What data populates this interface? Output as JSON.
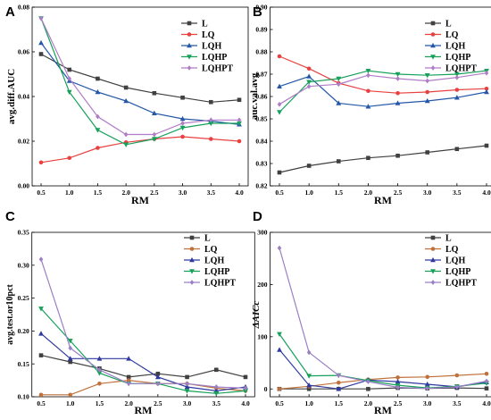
{
  "figure": {
    "panels": [
      "A",
      "B",
      "C",
      "D"
    ]
  },
  "chart_data": [
    {
      "panel": "A",
      "type": "line",
      "xlabel": "RM",
      "ylabel": "avg.diff.AUC",
      "x": [
        0.5,
        1.0,
        1.5,
        2.0,
        2.5,
        3.0,
        3.5,
        4.0
      ],
      "x_tick_labels": [
        "0.5",
        "1.0",
        "1.5",
        "2.0",
        "2.5",
        "3.0",
        "3.5",
        "4.0"
      ],
      "xlim": [
        0.5,
        4.0
      ],
      "ylim": [
        0.0,
        0.08
      ],
      "y_ticks": [
        0.0,
        0.02,
        0.04,
        0.06,
        0.08
      ],
      "y_tick_labels": [
        "0.00",
        "0.02",
        "0.04",
        "0.06",
        "0.08"
      ],
      "legend_position": "top-right",
      "series": [
        {
          "name": "L",
          "color": "#404040",
          "marker": "square",
          "values": [
            0.059,
            0.052,
            0.048,
            0.044,
            0.0415,
            0.0395,
            0.0375,
            0.0385
          ]
        },
        {
          "name": "LQ",
          "color": "#e8413f",
          "marker": "circle",
          "values": [
            0.0105,
            0.0125,
            0.017,
            0.0195,
            0.021,
            0.022,
            0.021,
            0.02
          ]
        },
        {
          "name": "LQH",
          "color": "#2457a8",
          "marker": "triangle-up",
          "values": [
            0.064,
            0.047,
            0.042,
            0.038,
            0.0325,
            0.03,
            0.029,
            0.0275
          ]
        },
        {
          "name": "LQHP",
          "color": "#16a05a",
          "marker": "triangle-down",
          "values": [
            0.075,
            0.042,
            0.025,
            0.0185,
            0.021,
            0.026,
            0.028,
            0.028
          ]
        },
        {
          "name": "LQHPT",
          "color": "#b07cc8",
          "marker": "diamond",
          "values": [
            0.075,
            0.048,
            0.031,
            0.023,
            0.023,
            0.028,
            0.0295,
            0.0295
          ]
        }
      ]
    },
    {
      "panel": "B",
      "type": "line",
      "xlabel": "RM",
      "ylabel": "auc.val.avg",
      "x": [
        0.5,
        1.0,
        1.5,
        2.0,
        2.5,
        3.0,
        3.5,
        4.0
      ],
      "x_tick_labels": [
        "0.5",
        "1.0",
        "1.5",
        "2.0",
        "2.5",
        "3.0",
        "3.5",
        "4.0"
      ],
      "xlim": [
        0.5,
        4.0
      ],
      "ylim": [
        0.82,
        0.9
      ],
      "y_ticks": [
        0.82,
        0.83,
        0.84,
        0.85,
        0.86,
        0.87,
        0.88,
        0.89,
        0.9
      ],
      "y_tick_labels": [
        "0.82",
        "0.83",
        "0.84",
        "0.85",
        "0.86",
        "0.87",
        "0.88",
        "0.89",
        "0.90"
      ],
      "legend_position": "top-right",
      "series": [
        {
          "name": "L",
          "color": "#404040",
          "marker": "square",
          "values": [
            0.826,
            0.829,
            0.831,
            0.8325,
            0.8335,
            0.835,
            0.8365,
            0.838
          ]
        },
        {
          "name": "LQ",
          "color": "#e8413f",
          "marker": "circle",
          "values": [
            0.878,
            0.8725,
            0.866,
            0.8625,
            0.8615,
            0.862,
            0.863,
            0.8635
          ]
        },
        {
          "name": "LQH",
          "color": "#2457a8",
          "marker": "triangle-up",
          "values": [
            0.8645,
            0.869,
            0.857,
            0.8555,
            0.857,
            0.858,
            0.8595,
            0.862
          ]
        },
        {
          "name": "LQHP",
          "color": "#16a05a",
          "marker": "triangle-down",
          "values": [
            0.853,
            0.8665,
            0.868,
            0.8715,
            0.87,
            0.8695,
            0.87,
            0.8715
          ]
        },
        {
          "name": "LQHPT",
          "color": "#b07cc8",
          "marker": "diamond",
          "values": [
            0.8565,
            0.8645,
            0.8655,
            0.8695,
            0.868,
            0.867,
            0.8685,
            0.8705
          ]
        }
      ]
    },
    {
      "panel": "C",
      "type": "line",
      "xlabel": "RM",
      "ylabel": "avg.test.or10pct",
      "x": [
        0.5,
        1.0,
        1.5,
        2.0,
        2.5,
        3.0,
        3.5,
        4.0
      ],
      "x_tick_labels": [
        "0.5",
        "1.0",
        "1.5",
        "2.0",
        "2.5",
        "3.0",
        "3.5",
        "4.0"
      ],
      "xlim": [
        0.5,
        4.0
      ],
      "ylim": [
        0.1,
        0.35
      ],
      "y_ticks": [
        0.1,
        0.15,
        0.2,
        0.25,
        0.3,
        0.35
      ],
      "y_tick_labels": [
        "0.10",
        "0.15",
        "0.20",
        "0.25",
        "0.30",
        "0.35"
      ],
      "legend_position": "top-right",
      "series": [
        {
          "name": "L",
          "color": "#404040",
          "marker": "square",
          "values": [
            0.163,
            0.153,
            0.143,
            0.13,
            0.135,
            0.13,
            0.141,
            0.13
          ]
        },
        {
          "name": "LQ",
          "color": "#c0703a",
          "marker": "circle",
          "values": [
            0.103,
            0.103,
            0.12,
            0.125,
            0.12,
            0.12,
            0.113,
            0.109
          ]
        },
        {
          "name": "LQH",
          "color": "#2f3aa0",
          "marker": "triangle-up",
          "values": [
            0.196,
            0.158,
            0.158,
            0.158,
            0.13,
            0.115,
            0.109,
            0.115
          ]
        },
        {
          "name": "LQHP",
          "color": "#16a05a",
          "marker": "triangle-down",
          "values": [
            0.234,
            0.185,
            0.136,
            0.12,
            0.12,
            0.109,
            0.105,
            0.109
          ]
        },
        {
          "name": "LQHPT",
          "color": "#9b7fc6",
          "marker": "diamond",
          "values": [
            0.309,
            0.174,
            0.141,
            0.12,
            0.12,
            0.12,
            0.115,
            0.113
          ]
        }
      ]
    },
    {
      "panel": "D",
      "type": "line",
      "xlabel": "RM",
      "ylabel": "ΔAICc",
      "x": [
        0.5,
        1.0,
        1.5,
        2.0,
        2.5,
        3.0,
        3.5,
        4.0
      ],
      "x_tick_labels": [
        "0.5",
        "1.0",
        "1.5",
        "2.0",
        "2.5",
        "3.0",
        "3.5",
        "4.0"
      ],
      "xlim": [
        0.5,
        4.0
      ],
      "ylim": [
        -15,
        300
      ],
      "y_ticks": [
        0,
        100,
        200,
        300
      ],
      "y_tick_labels": [
        "0",
        "100",
        "200",
        "300"
      ],
      "legend_position": "top-right",
      "series": [
        {
          "name": "L",
          "color": "#404040",
          "marker": "square",
          "values": [
            0,
            0,
            0,
            0,
            2,
            1,
            2,
            1
          ]
        },
        {
          "name": "LQ",
          "color": "#c0703a",
          "marker": "circle",
          "values": [
            0,
            5,
            12,
            18,
            22,
            23,
            26,
            29
          ]
        },
        {
          "name": "LQH",
          "color": "#2f3aa0",
          "marker": "triangle-up",
          "values": [
            75,
            7,
            0,
            17,
            14,
            9,
            4,
            13
          ]
        },
        {
          "name": "LQHP",
          "color": "#16a05a",
          "marker": "triangle-down",
          "values": [
            105,
            25,
            26,
            16,
            7,
            2,
            5,
            11
          ]
        },
        {
          "name": "LQHPT",
          "color": "#9b7fc6",
          "marker": "diamond",
          "values": [
            270,
            70,
            26,
            14,
            3,
            1,
            4,
            15
          ]
        }
      ]
    }
  ]
}
